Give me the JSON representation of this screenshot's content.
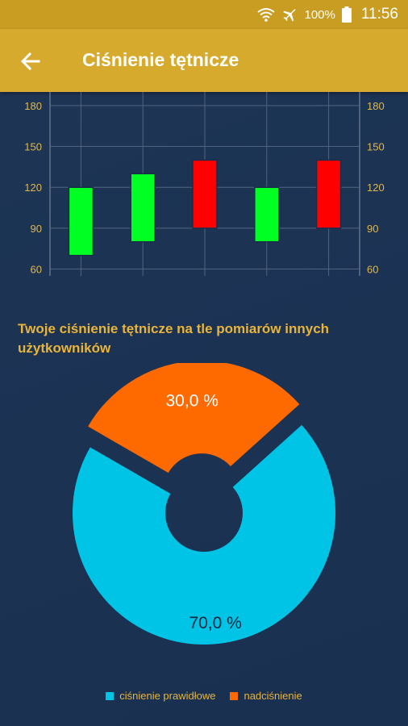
{
  "status_bar": {
    "battery": "100%",
    "time": "11:56",
    "icons": [
      "wifi-icon",
      "airplane-mode-icon",
      "battery-icon"
    ]
  },
  "app_bar": {
    "back_icon": "arrow-back-icon",
    "title": "Ciśnienie tętnicze"
  },
  "colors": {
    "header": "#d6aa2c",
    "normal": "#00ff22",
    "high": "#ff0000",
    "pie_normal": "#00c4e6",
    "pie_high": "#ff6a00",
    "text_accent": "#e8b43a"
  },
  "chart_data": [
    {
      "type": "bar",
      "subtype": "floating-range",
      "ylim": [
        55,
        190
      ],
      "yticks": [
        "60",
        "90",
        "120",
        "150",
        "180"
      ],
      "y_axis_both_sides": true,
      "grid": true,
      "series": [
        {
          "low": 70,
          "high": 120,
          "status": "normal"
        },
        {
          "low": 80,
          "high": 130,
          "status": "normal"
        },
        {
          "low": 90,
          "high": 140,
          "status": "high"
        },
        {
          "low": 80,
          "high": 120,
          "status": "normal"
        },
        {
          "low": 90,
          "high": 140,
          "status": "high"
        }
      ]
    },
    {
      "type": "pie",
      "title": "Twoje ciśnienie tętnicze na tle pomiarów innych użytkowników",
      "donut": true,
      "slices": [
        {
          "label": "ciśnienie prawidłowe",
          "value": 70.0,
          "display": "70,0 %",
          "color": "#00c4e6"
        },
        {
          "label": "nadciśnienie",
          "value": 30.0,
          "display": "30,0 %",
          "color": "#ff6a00",
          "exploded": true
        }
      ],
      "legend": "bottom"
    }
  ]
}
